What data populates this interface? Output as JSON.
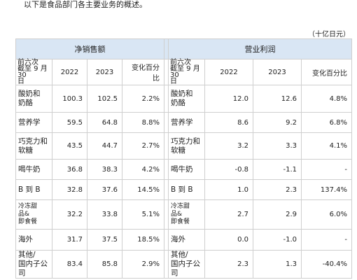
{
  "intro_text": "以下是食品部门各主要业务的概述。",
  "unit_label": "（十亿日元）",
  "table": {
    "net_sales_header": "净销售额",
    "operating_profit_header": "营业利润",
    "period_label": "前六次\n截至 9 月 30\n日",
    "year_1": "2022",
    "year_2": "2023",
    "change_label": "变化百分比",
    "rows": [
      {
        "segment": "酸奶和\n奶酪",
        "sales_2022": "100.3",
        "sales_2023": "102.5",
        "sales_change": "2.2%",
        "op_segment": "酸奶和\n奶酪",
        "op_2022": "12.0",
        "op_2023": "12.6",
        "op_change": "4.8%"
      },
      {
        "segment": "营养学",
        "sales_2022": "59.5",
        "sales_2023": "64.8",
        "sales_change": "8.8%",
        "op_segment": "营养学",
        "op_2022": "8.6",
        "op_2023": "9.2",
        "op_change": "6.8%"
      },
      {
        "segment": "巧克力和\n软糖",
        "sales_2022": "43.5",
        "sales_2023": "44.7",
        "sales_change": "2.7%",
        "op_segment": "巧克力和\n软糖",
        "op_2022": "3.2",
        "op_2023": "3.3",
        "op_change": "4.1%"
      },
      {
        "segment": "喝牛奶",
        "sales_2022": "36.8",
        "sales_2023": "38.3",
        "sales_change": "4.2%",
        "op_segment": "喝牛奶",
        "op_2022": "-0.8",
        "op_2023": "-1.1",
        "op_change": "-"
      },
      {
        "segment": "B 到 B",
        "sales_2022": "32.8",
        "sales_2023": "37.6",
        "sales_change": "14.5%",
        "op_segment": "B 到 B",
        "op_2022": "1.0",
        "op_2023": "2.3",
        "op_change": "137.4%"
      },
      {
        "segment": "冷冻甜\n品&\n即食餐",
        "sales_2022": "32.2",
        "sales_2023": "33.8",
        "sales_change": "5.1%",
        "op_segment": "冷冻甜\n品&\n即食餐",
        "op_2022": "2.7",
        "op_2023": "2.9",
        "op_change": "6.0%"
      },
      {
        "segment": "海外",
        "sales_2022": "31.7",
        "sales_2023": "37.5",
        "sales_change": "18.5%",
        "op_segment": "海外",
        "op_2022": "0.0",
        "op_2023": "-1.0",
        "op_change": "-"
      },
      {
        "segment": "其他/\n国内子公司",
        "sales_2022": "83.4",
        "sales_2023": "85.8",
        "sales_change": "2.9%",
        "op_segment": "其他/\n国内子公司",
        "op_2022": "2.3",
        "op_2023": "1.3",
        "op_change": "-40.4%"
      }
    ]
  }
}
